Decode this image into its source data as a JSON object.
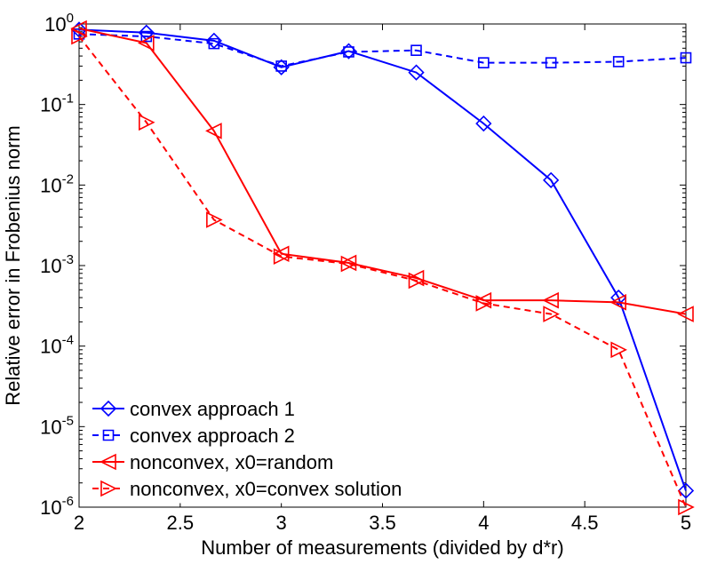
{
  "chart_data": {
    "type": "line",
    "xlabel": "Number of measurements (divided by d*r)",
    "ylabel": "Relative error in Frobenius norm",
    "yscale": "log",
    "xlim": [
      2,
      5
    ],
    "ylim": [
      1e-06,
      1
    ],
    "grid": false,
    "legend_position": "bottom-left",
    "x_ticks": [
      "2",
      "2.5",
      "3",
      "3.5",
      "4",
      "4.5",
      "5"
    ],
    "y_ticks": [
      {
        "base": "10",
        "exp": "0"
      },
      {
        "base": "10",
        "exp": "-1"
      },
      {
        "base": "10",
        "exp": "-2"
      },
      {
        "base": "10",
        "exp": "-3"
      },
      {
        "base": "10",
        "exp": "-4"
      },
      {
        "base": "10",
        "exp": "-5"
      },
      {
        "base": "10",
        "exp": "-6"
      }
    ],
    "x": [
      2,
      2.333,
      2.667,
      3,
      3.333,
      3.667,
      4,
      4.333,
      4.667,
      5
    ],
    "series": [
      {
        "name": "convex approach 1",
        "color": "#0000ff",
        "dash": "solid",
        "marker": "diamond",
        "values": [
          0.85,
          0.78,
          0.62,
          0.29,
          0.46,
          0.25,
          0.058,
          0.0115,
          0.0004,
          1.6e-06
        ]
      },
      {
        "name": "convex approach 2",
        "color": "#0000ff",
        "dash": "dashed",
        "marker": "square",
        "values": [
          0.75,
          0.7,
          0.57,
          0.3,
          0.45,
          0.47,
          0.33,
          0.33,
          0.34,
          0.38
        ]
      },
      {
        "name": "nonconvex, x0=random",
        "color": "#ff0000",
        "dash": "solid",
        "marker": "triangle-left",
        "values": [
          0.88,
          0.58,
          0.047,
          0.0014,
          0.00108,
          0.0007,
          0.00037,
          0.00037,
          0.00035,
          0.00025
        ]
      },
      {
        "name": "nonconvex, x0=convex solution",
        "color": "#ff0000",
        "dash": "dashed",
        "marker": "triangle-right",
        "values": [
          0.7,
          0.06,
          0.0037,
          0.0013,
          0.00105,
          0.00065,
          0.00034,
          0.00025,
          9e-05,
          1e-06
        ]
      }
    ]
  }
}
